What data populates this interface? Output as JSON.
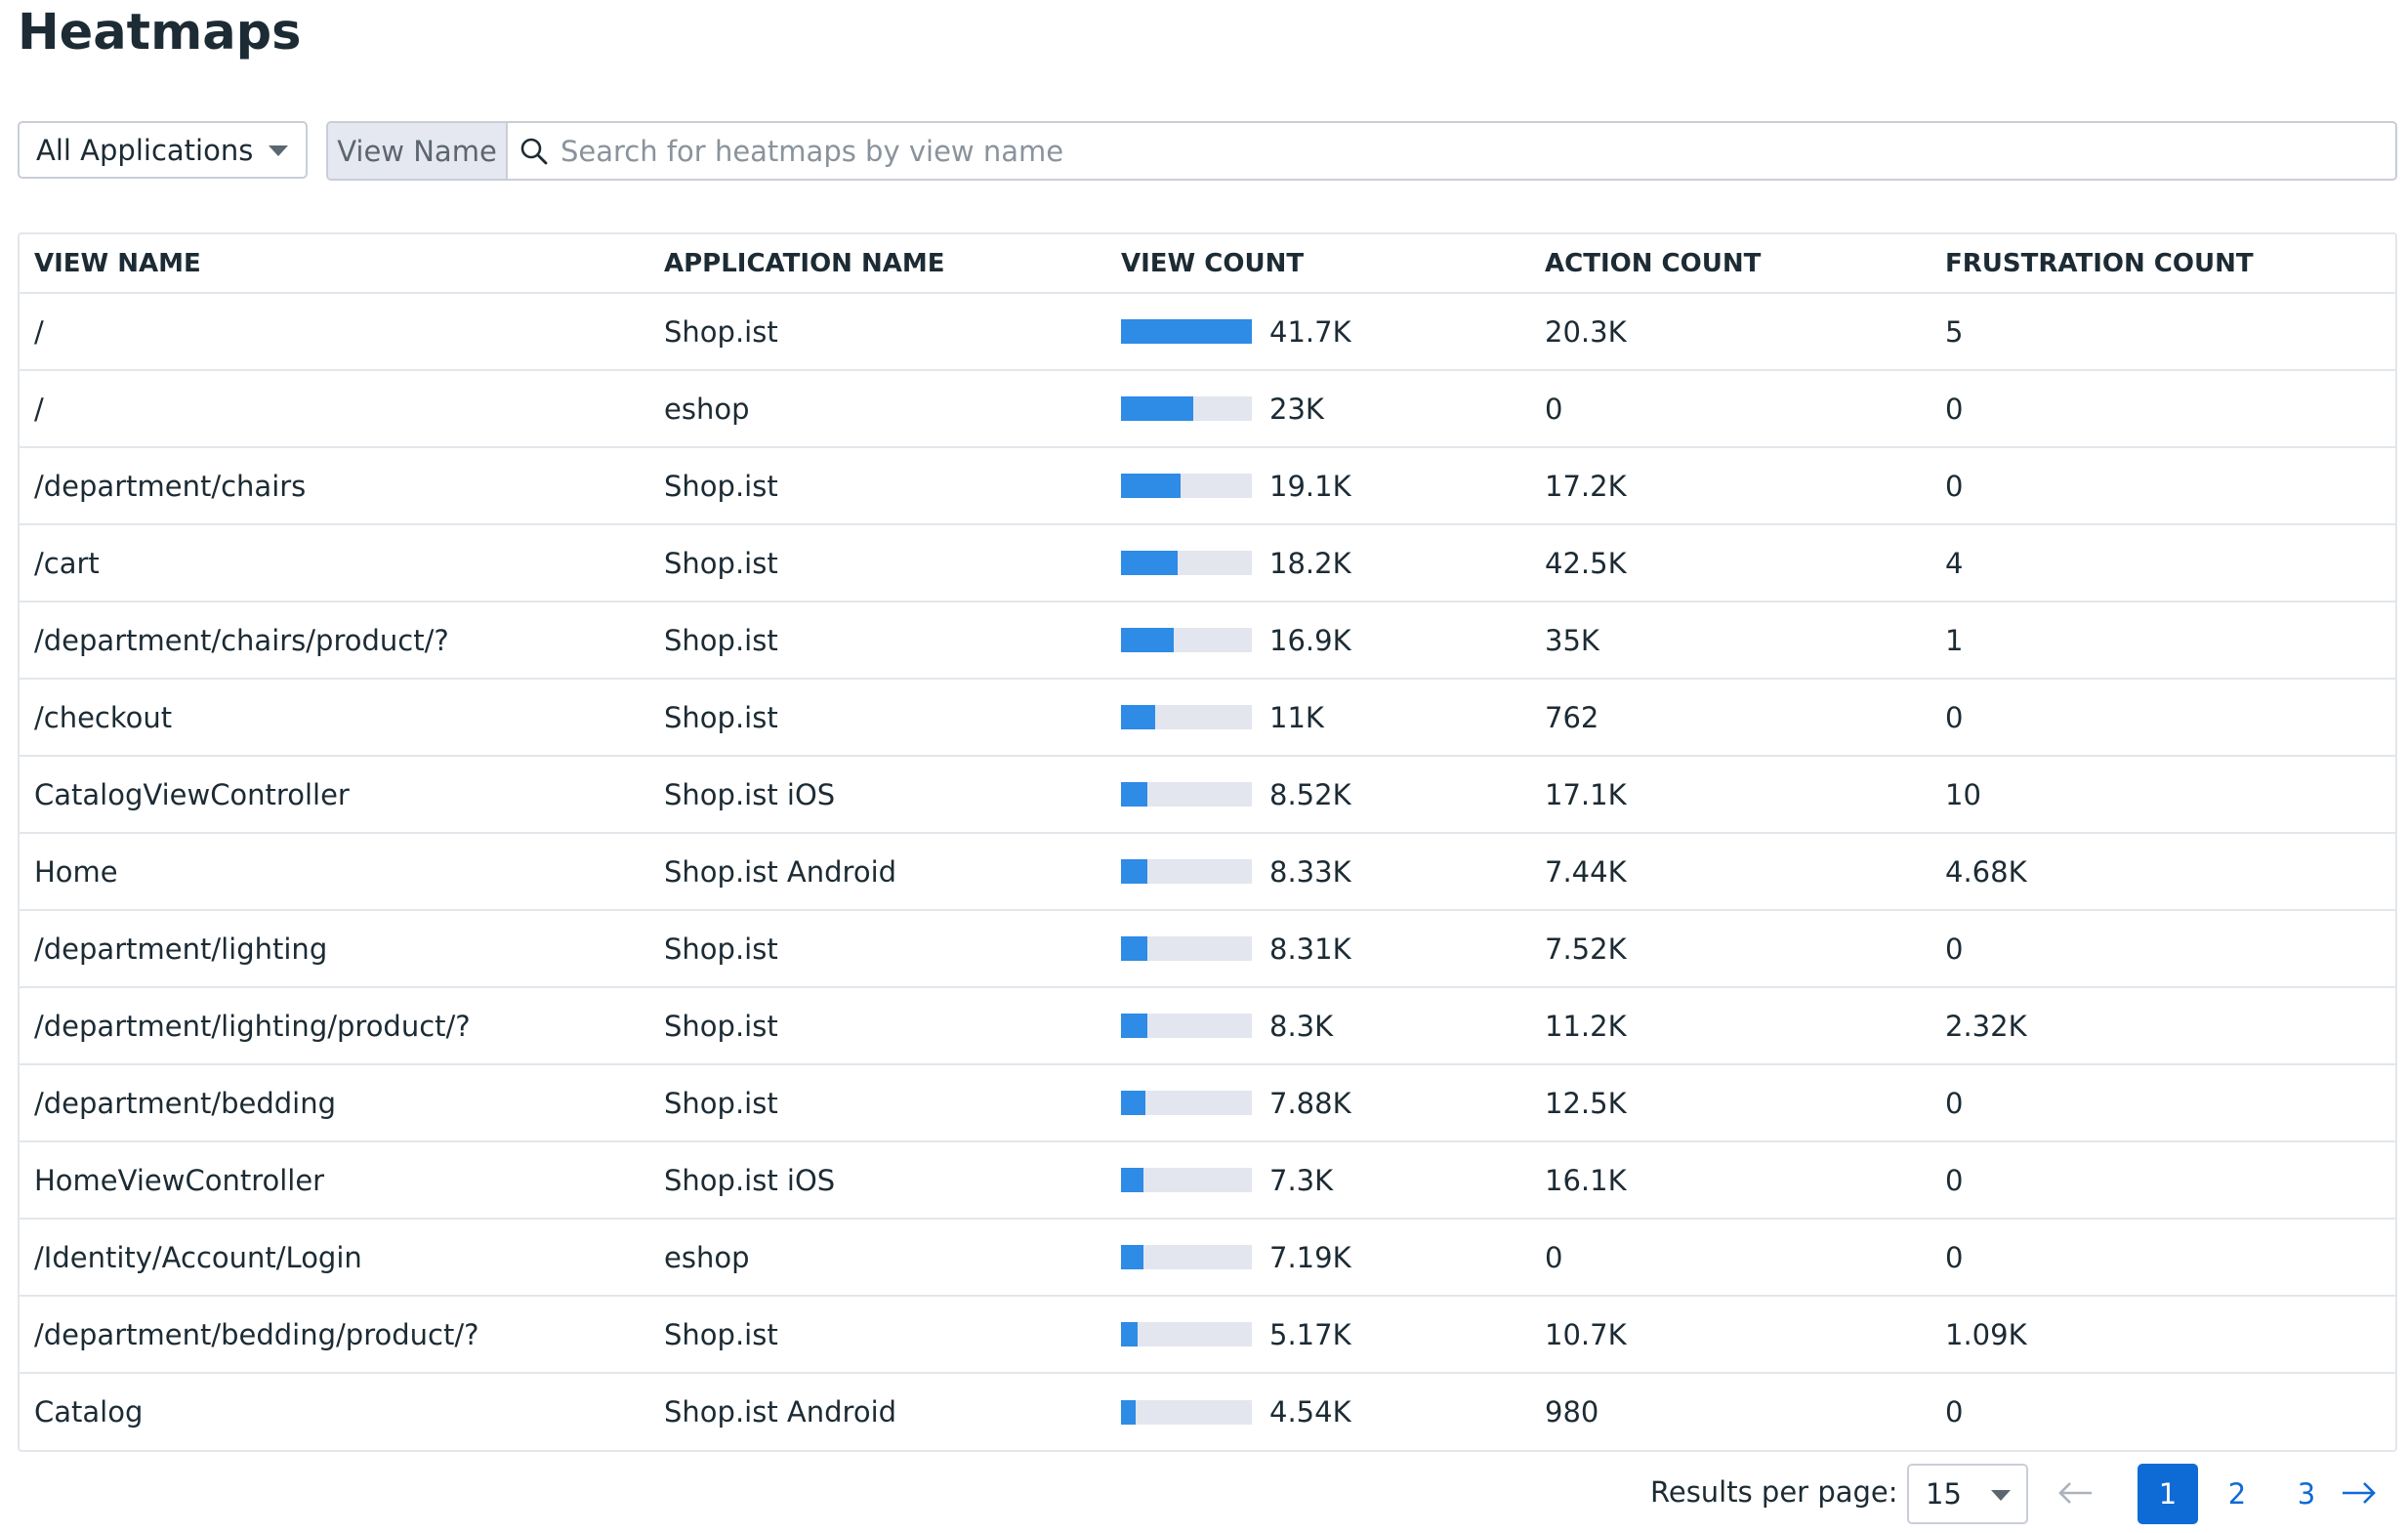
{
  "page": {
    "title": "Heatmaps"
  },
  "filters": {
    "app_select": "All Applications",
    "search_prefix": "View Name",
    "search_placeholder": "Search for heatmaps by view name",
    "search_value": ""
  },
  "table": {
    "headers": [
      "VIEW NAME",
      "APPLICATION NAME",
      "VIEW COUNT",
      "ACTION COUNT",
      "FRUSTRATION COUNT"
    ],
    "rows": [
      {
        "view_name": "/",
        "app": "Shop.ist",
        "view_count": "41.7K",
        "view_count_value": 41700,
        "action_count": "20.3K",
        "frustration_count": "5"
      },
      {
        "view_name": "/",
        "app": "eshop",
        "view_count": "23K",
        "view_count_value": 23000,
        "action_count": "0",
        "frustration_count": "0"
      },
      {
        "view_name": "/department/chairs",
        "app": "Shop.ist",
        "view_count": "19.1K",
        "view_count_value": 19100,
        "action_count": "17.2K",
        "frustration_count": "0"
      },
      {
        "view_name": "/cart",
        "app": "Shop.ist",
        "view_count": "18.2K",
        "view_count_value": 18200,
        "action_count": "42.5K",
        "frustration_count": "4"
      },
      {
        "view_name": "/department/chairs/product/?",
        "app": "Shop.ist",
        "view_count": "16.9K",
        "view_count_value": 16900,
        "action_count": "35K",
        "frustration_count": "1"
      },
      {
        "view_name": "/checkout",
        "app": "Shop.ist",
        "view_count": "11K",
        "view_count_value": 11000,
        "action_count": "762",
        "frustration_count": "0"
      },
      {
        "view_name": "CatalogViewController",
        "app": "Shop.ist iOS",
        "view_count": "8.52K",
        "view_count_value": 8520,
        "action_count": "17.1K",
        "frustration_count": "10"
      },
      {
        "view_name": "Home",
        "app": "Shop.ist Android",
        "view_count": "8.33K",
        "view_count_value": 8330,
        "action_count": "7.44K",
        "frustration_count": "4.68K"
      },
      {
        "view_name": "/department/lighting",
        "app": "Shop.ist",
        "view_count": "8.31K",
        "view_count_value": 8310,
        "action_count": "7.52K",
        "frustration_count": "0"
      },
      {
        "view_name": "/department/lighting/product/?",
        "app": "Shop.ist",
        "view_count": "8.3K",
        "view_count_value": 8300,
        "action_count": "11.2K",
        "frustration_count": "2.32K"
      },
      {
        "view_name": "/department/bedding",
        "app": "Shop.ist",
        "view_count": "7.88K",
        "view_count_value": 7880,
        "action_count": "12.5K",
        "frustration_count": "0"
      },
      {
        "view_name": "HomeViewController",
        "app": "Shop.ist iOS",
        "view_count": "7.3K",
        "view_count_value": 7300,
        "action_count": "16.1K",
        "frustration_count": "0"
      },
      {
        "view_name": "/Identity/Account/Login",
        "app": "eshop",
        "view_count": "7.19K",
        "view_count_value": 7190,
        "action_count": "0",
        "frustration_count": "0"
      },
      {
        "view_name": "/department/bedding/product/?",
        "app": "Shop.ist",
        "view_count": "5.17K",
        "view_count_value": 5170,
        "action_count": "10.7K",
        "frustration_count": "1.09K"
      },
      {
        "view_name": "Catalog",
        "app": "Shop.ist Android",
        "view_count": "4.54K",
        "view_count_value": 4540,
        "action_count": "980",
        "frustration_count": "0"
      }
    ]
  },
  "pagination": {
    "results_label": "Results per page:",
    "per_page": "15",
    "pages": [
      "1",
      "2",
      "3"
    ],
    "current_page": "1"
  },
  "colors": {
    "bar_fill": "#2e8be6",
    "bar_track": "#e3e6ee",
    "accent": "#0e6bd6"
  }
}
